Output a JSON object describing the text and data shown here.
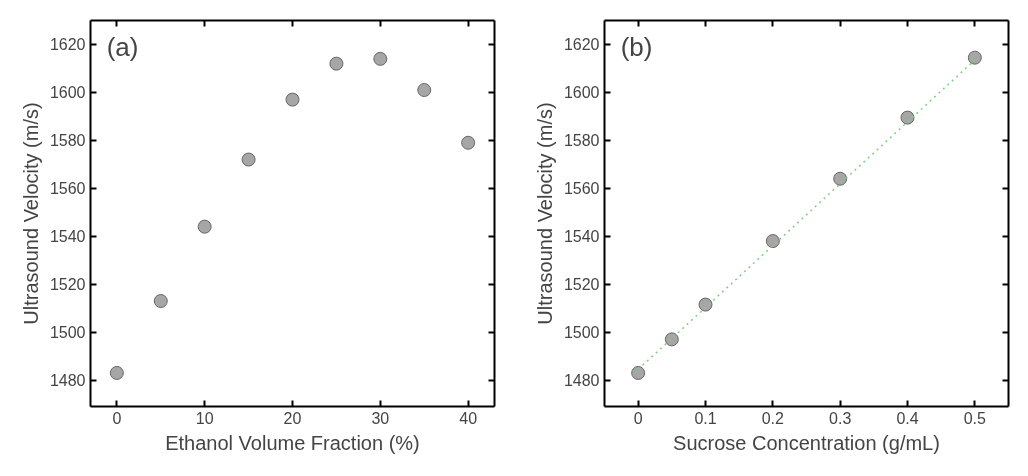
{
  "chart_data": [
    {
      "type": "scatter",
      "annotations": [
        "(a)"
      ],
      "xlabel": "Ethanol Volume Fraction (%)",
      "ylabel": "Ultrasound Velocity (m/s)",
      "x": [
        0,
        5,
        10,
        15,
        20,
        25,
        30,
        35,
        40
      ],
      "series": [
        {
          "color": "#a6a6a6",
          "marker": "circle",
          "values": [
            1483,
            1513,
            1544,
            1572,
            1597,
            1612,
            1614,
            1601,
            1579
          ]
        }
      ],
      "xlim": [
        -3,
        43
      ],
      "xticks": [
        0,
        10,
        20,
        30,
        40
      ],
      "ylim": [
        1469,
        1630
      ],
      "yticks": [
        1480,
        1500,
        1520,
        1540,
        1560,
        1580,
        1600,
        1620
      ],
      "grid": false
    },
    {
      "type": "scatter",
      "annotations": [
        "(b)"
      ],
      "xlabel": "Sucrose Concentration (g/mL)",
      "ylabel": "Ultrasound Velocity (m/s)",
      "x": [
        0,
        0.05,
        0.1,
        0.2,
        0.3,
        0.4,
        0.5
      ],
      "series": [
        {
          "color": "#a6a6a6",
          "marker": "circle",
          "values": [
            1483,
            1497,
            1511.5,
            1538,
            1564,
            1589.5,
            1614.5
          ]
        },
        {
          "type": "line",
          "color": "#7fcf7f",
          "line_style": "dotted",
          "x": [
            0,
            0.5
          ],
          "values": [
            1484.5,
            1613.5
          ]
        }
      ],
      "xlim": [
        -0.05,
        0.55
      ],
      "xticks": [
        0,
        {
          "value": 0.1,
          "label": "0.1"
        },
        {
          "value": 0.2,
          "label": "0.2"
        },
        {
          "value": 0.3,
          "label": "0.3"
        },
        {
          "value": 0.4,
          "label": "0.4"
        },
        {
          "value": 0.5,
          "label": "0.5"
        }
      ],
      "ylim": [
        1469,
        1630
      ],
      "yticks": [
        1480,
        1500,
        1520,
        1540,
        1560,
        1580,
        1600,
        1620
      ],
      "grid": false
    }
  ]
}
